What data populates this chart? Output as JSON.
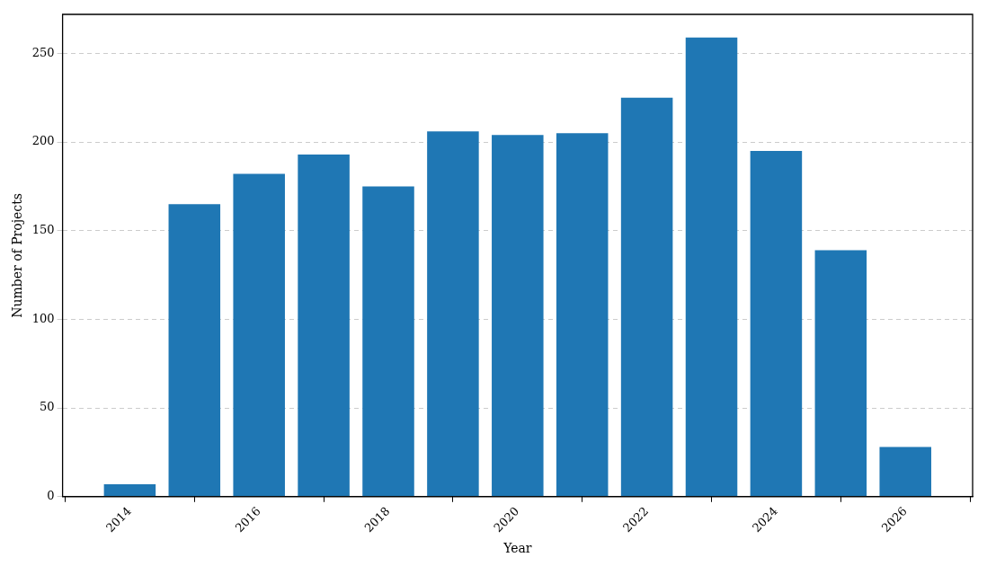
{
  "chart_data": {
    "type": "bar",
    "xlabel": "Year",
    "ylabel": "Number of Projects",
    "x": [
      2014,
      2015,
      2016,
      2017,
      2018,
      2019,
      2020,
      2021,
      2022,
      2023,
      2024,
      2025,
      2026
    ],
    "values": [
      7,
      165,
      182,
      193,
      175,
      206,
      204,
      205,
      225,
      259,
      195,
      139,
      28
    ],
    "color": "#1f77b4",
    "xlim": [
      2012.96,
      2027.04
    ],
    "xticks": [
      2014,
      2016,
      2018,
      2020,
      2022,
      2024,
      2026
    ],
    "ylim": [
      0,
      272
    ],
    "yticks": [
      0,
      50,
      100,
      150,
      200,
      250
    ],
    "grid": "y",
    "legend": false
  }
}
